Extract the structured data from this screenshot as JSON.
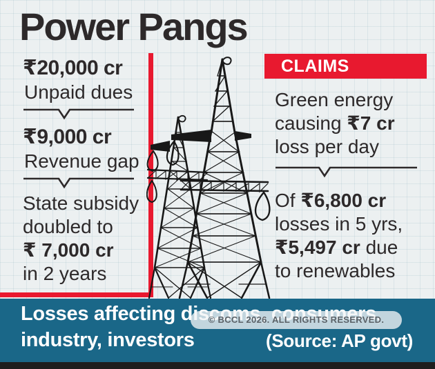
{
  "title": "Power Pangs",
  "colors": {
    "accent_red": "#e8192f",
    "teal": "#1a6788",
    "text_dark": "#2d292a",
    "background": "#ecf0f1",
    "footer_strip": "#1e1e1e"
  },
  "left_stats": {
    "items": [
      {
        "value": "₹20,000 cr",
        "label": "Unpaid dues"
      },
      {
        "value": "₹9,000 cr",
        "label": "Revenue gap"
      }
    ],
    "note_lines": [
      [
        {
          "t": "State subsidy"
        }
      ],
      [
        {
          "t": "doubled to"
        }
      ],
      [
        {
          "t": "₹ 7,000 cr",
          "b": true
        }
      ],
      [
        {
          "t": "in 2 years"
        }
      ]
    ]
  },
  "claims": {
    "banner_label": "CLAIMS",
    "claim1_lines": [
      [
        {
          "t": "Green energy"
        }
      ],
      [
        {
          "t": "causing "
        },
        {
          "t": "₹7 cr",
          "b": true
        }
      ],
      [
        {
          "t": "loss per day"
        }
      ]
    ],
    "claim2_lines": [
      [
        {
          "t": "Of "
        },
        {
          "t": "₹6,800 cr",
          "b": true
        }
      ],
      [
        {
          "t": "losses in 5 yrs,"
        }
      ],
      [
        {
          "t": "₹5,497 cr",
          "b": true
        },
        {
          "t": " due"
        }
      ],
      [
        {
          "t": "to renewables"
        }
      ]
    ]
  },
  "footer": {
    "line1": "Losses affecting discoms, consumers,",
    "line2": "industry, investors",
    "source": "(Source: AP govt)"
  },
  "watermark": "© BCCL 2026. ALL RIGHTS RESERVED.",
  "illustration": "transmission-towers"
}
